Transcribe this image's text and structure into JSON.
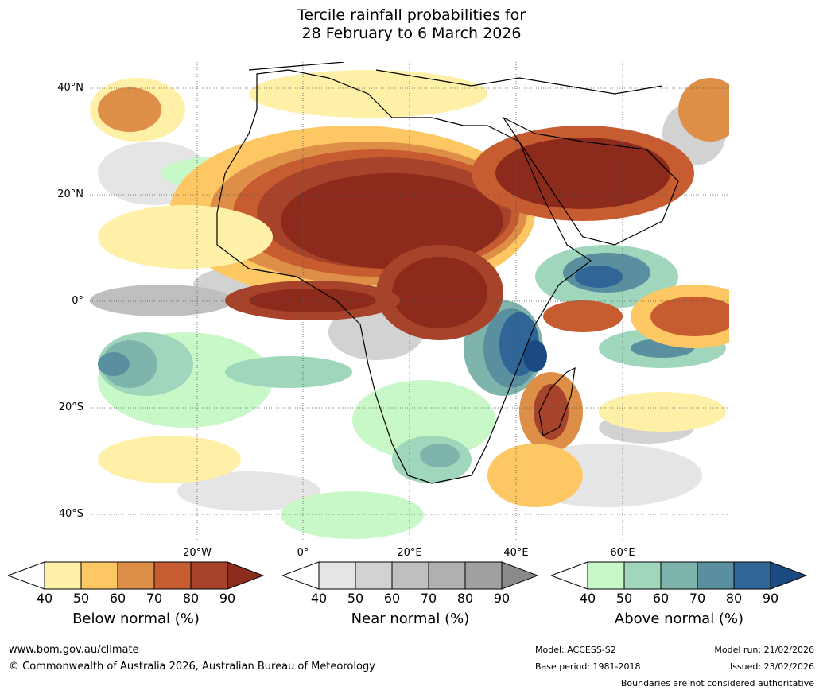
{
  "title": {
    "line1": "Tercile rainfall probabilities for",
    "line2": "28 February to 6 March 2026"
  },
  "map": {
    "lat_labels": [
      "40°N",
      "20°N",
      "0°",
      "20°S",
      "40°S"
    ],
    "lon_labels": [
      "20°W",
      "0°",
      "20°E",
      "40°E",
      "60°E"
    ],
    "colors": {
      "below": [
        "#fff0a8",
        "#fdc863",
        "#de8f47",
        "#c75c30",
        "#a6432a",
        "#8c2a1c"
      ],
      "near": [
        "#e5e5e5",
        "#d2d2d2",
        "#bfbfbf",
        "#b0b0b0",
        "#a0a0a0",
        "#8a8a8a"
      ],
      "above": [
        "#c8f8c8",
        "#a0d6bc",
        "#7fb4ac",
        "#5a8fa0",
        "#2f6597",
        "#1b4a82"
      ]
    }
  },
  "colorbars": [
    {
      "id": "below",
      "label": "Below normal (%)",
      "ticks": [
        "40",
        "50",
        "60",
        "70",
        "80",
        "90"
      ]
    },
    {
      "id": "near",
      "label": "Near normal (%)",
      "ticks": [
        "40",
        "50",
        "60",
        "70",
        "80",
        "90"
      ]
    },
    {
      "id": "above",
      "label": "Above normal (%)",
      "ticks": [
        "40",
        "50",
        "60",
        "70",
        "80",
        "90"
      ]
    }
  ],
  "footer": {
    "website": "www.bom.gov.au/climate",
    "copyright": "© Commonwealth of Australia 2026, Australian Bureau of Meteorology",
    "model": "Model: ACCESS-S2",
    "base_period": "Base period: 1981-2018",
    "model_run": "Model run: 21/02/2026",
    "issued": "Issued: 23/02/2026",
    "disclaimer": "Boundaries are not considered authoritative"
  }
}
